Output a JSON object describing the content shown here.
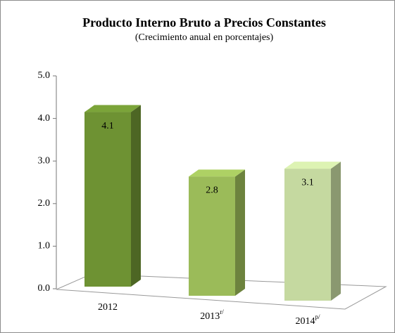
{
  "chart_data": {
    "type": "bar3d",
    "title": "Producto Interno  Bruto  a Precios Constantes",
    "subtitle": "(Crecimiento  anual  en porcentajes)",
    "categories": [
      "2012",
      "2013",
      "2014"
    ],
    "category_superscripts": {
      "1": "r/",
      "2": "p/"
    },
    "values": [
      4.1,
      2.8,
      3.1
    ],
    "colors": [
      "#6e9233",
      "#9bbb59",
      "#c5d9a0"
    ],
    "ylim": [
      0,
      5
    ],
    "yticks": [
      {
        "value": 0,
        "label": "0.0"
      },
      {
        "value": 1,
        "label": "1.0"
      },
      {
        "value": 2,
        "label": "2.0"
      },
      {
        "value": 3,
        "label": "3.0"
      },
      {
        "value": 4,
        "label": "4.0"
      },
      {
        "value": 5,
        "label": "5.0"
      }
    ]
  }
}
